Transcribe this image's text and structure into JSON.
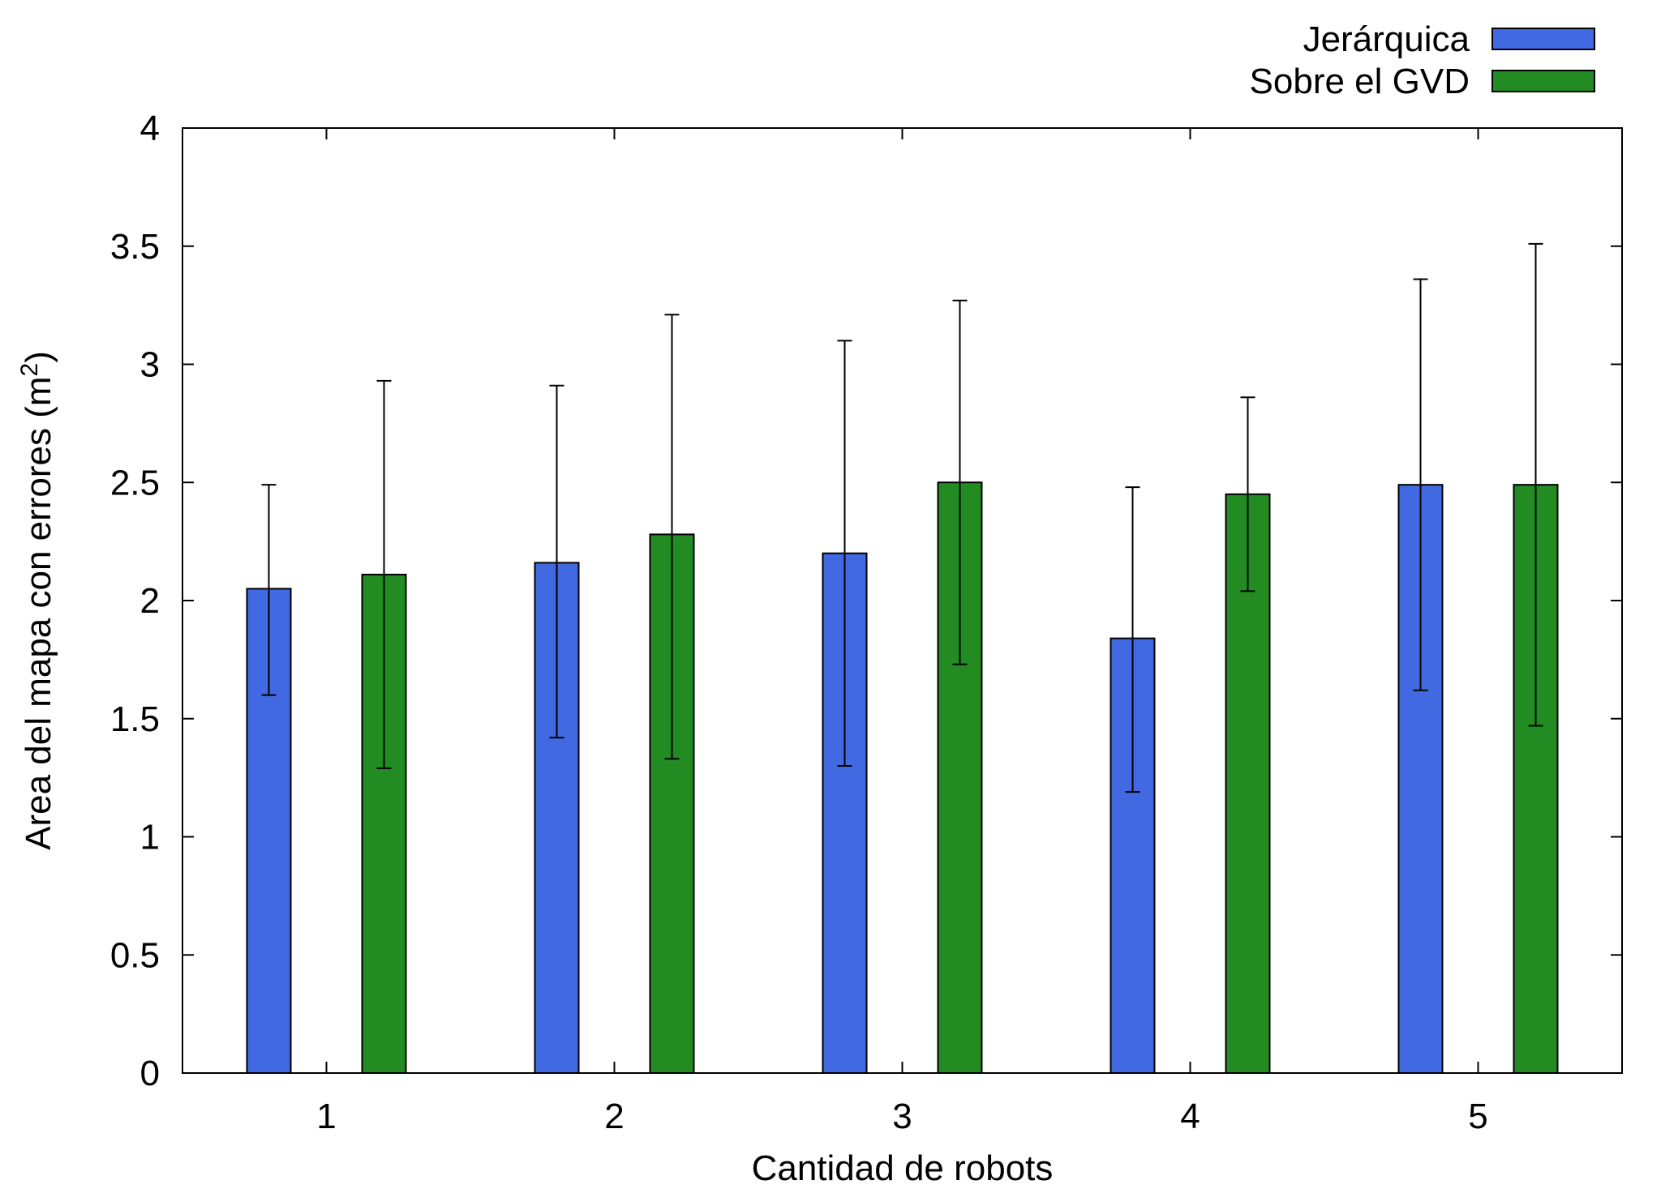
{
  "chart_data": {
    "type": "bar",
    "categories": [
      "1",
      "2",
      "3",
      "4",
      "5"
    ],
    "xlabel": "Cantidad de robots",
    "ylabel": "Area del mapa con errores (m",
    "ylabel_superscript": "2",
    "ylabel_suffix": ")",
    "ylim": [
      0,
      4
    ],
    "yticks": [
      "0",
      "0.5",
      "1",
      "1.5",
      "2",
      "2.5",
      "3",
      "3.5",
      "4"
    ],
    "grid": false,
    "legend_position": "top-right, above plot",
    "series": [
      {
        "name": "Jerárquica",
        "color": "#4169e1",
        "values": [
          2.05,
          2.16,
          2.2,
          1.84,
          2.49
        ],
        "error_low": [
          1.6,
          1.42,
          1.3,
          1.19,
          1.62
        ],
        "error_high": [
          2.49,
          2.91,
          3.1,
          2.48,
          3.36
        ]
      },
      {
        "name": "Sobre el GVD",
        "color": "#228b22",
        "values": [
          2.11,
          2.28,
          2.5,
          2.45,
          2.49
        ],
        "error_low": [
          1.29,
          1.33,
          1.73,
          2.04,
          1.47
        ],
        "error_high": [
          2.93,
          3.21,
          3.27,
          2.86,
          3.51
        ]
      }
    ]
  }
}
